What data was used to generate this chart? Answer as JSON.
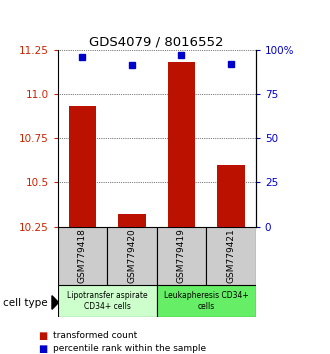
{
  "title": "GDS4079 / 8016552",
  "samples": [
    "GSM779418",
    "GSM779420",
    "GSM779419",
    "GSM779421"
  ],
  "transformed_counts": [
    10.93,
    10.32,
    11.18,
    10.6
  ],
  "percentile_ranks": [
    96,
    91,
    97,
    92
  ],
  "ylim_left": [
    10.25,
    11.25
  ],
  "ylim_right": [
    0,
    100
  ],
  "yticks_left": [
    10.25,
    10.5,
    10.75,
    11.0,
    11.25
  ],
  "yticks_right": [
    0,
    25,
    50,
    75,
    100
  ],
  "bar_color": "#bb1100",
  "dot_color": "#0000cc",
  "group1_label": "Lipotransfer aspirate\nCD34+ cells",
  "group2_label": "Leukapheresis CD34+\ncells",
  "group1_samples": [
    0,
    1
  ],
  "group2_samples": [
    2,
    3
  ],
  "group1_bg": "#ccffcc",
  "group2_bg": "#66ee66",
  "sample_bg": "#cccccc",
  "cell_type_label": "cell type",
  "legend_bar_label": "transformed count",
  "legend_dot_label": "percentile rank within the sample"
}
